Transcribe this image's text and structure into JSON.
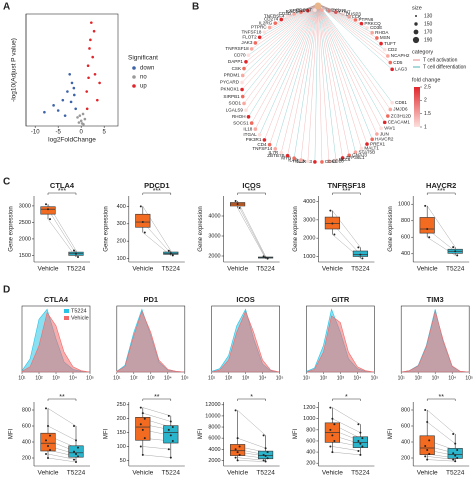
{
  "chart_data": [
    {
      "type": "scatter",
      "panel": "A",
      "xlabel": "log2FoldChange",
      "ylabel": "-log10(Adjust P value)",
      "xlim": [
        -12,
        8
      ],
      "xticks": [
        -10,
        -5,
        0,
        5
      ],
      "ylim": [
        0,
        65
      ],
      "legend_title": "Significant",
      "series": [
        {
          "name": "down",
          "color": "#3d63a8",
          "x": [
            -8,
            -6,
            -4,
            -3,
            -2.5,
            -2,
            -1.5,
            -1.2,
            -3.5,
            -5,
            -2.2,
            -1.6
          ],
          "values": [
            8,
            12,
            15,
            20,
            30,
            25,
            18,
            10,
            6,
            9,
            14,
            22
          ]
        },
        {
          "name": "no",
          "color": "#9a9a9a",
          "x": [
            -0.5,
            0,
            0.5,
            -0.8,
            0.8,
            0.2,
            -0.3,
            0.4
          ],
          "values": [
            2,
            3,
            1,
            5,
            4,
            1.5,
            6,
            7
          ]
        },
        {
          "name": "up",
          "color": "#e0262b",
          "x": [
            1.2,
            1.5,
            2,
            2.5,
            3,
            4,
            2.2,
            1.8,
            3.5,
            1.3,
            2.8,
            1.6
          ],
          "values": [
            20,
            35,
            50,
            40,
            30,
            25,
            60,
            45,
            15,
            10,
            55,
            28
          ]
        }
      ]
    },
    {
      "type": "network",
      "panel": "B",
      "size_title": "size",
      "sizes": [
        130,
        150,
        170,
        190
      ],
      "category_title": "category",
      "categories": [
        "T cell activation",
        "T cell differentiation"
      ],
      "category_colors": [
        "#e68a8a",
        "#4fb0b5"
      ],
      "fold_title": "fold change",
      "fold_ticks": [
        2.5,
        2.0,
        1.5,
        1.0
      ],
      "nodes": [
        "CD81",
        "JMJD6",
        "ZC3H12D",
        "CEACAM1",
        "VAV1",
        "JUN",
        "HAVCR2",
        "PREX1",
        "MALT1",
        "STAT5B",
        "GNAJ3",
        "ZFP36L1",
        "BCL6",
        "CD28",
        "CD83",
        "NLRC3",
        "RELB",
        "IL4R",
        "MYB",
        "ZBTB7B",
        "IL7R",
        "TNFSF14",
        "CD4",
        "PIK3R1",
        "ITGAL",
        "IL18",
        "SOCS1",
        "RHOH",
        "LGALS9",
        "SOD1",
        "SIRPB1",
        "PKNOX1",
        "PYCARD",
        "PRDM1",
        "CSK",
        "DAPP1",
        "CD70",
        "TNFRSF18",
        "JAK3",
        "FLOT2",
        "TNFSF18",
        "PTPRC",
        "IL2RG",
        "CD274",
        "TNFRSF4",
        "CD3D",
        "RAC1",
        "STMN3",
        "EDOST",
        "TREX1",
        "CD276",
        "CD47",
        "DUSP3",
        "LCK",
        "PTPN6",
        "PRKCQ",
        "CD3E",
        "RHOA",
        "MSN",
        "TUFT",
        "CD2",
        "NCAPH2",
        "CD5",
        "LAG3"
      ]
    },
    {
      "type": "box",
      "panel": "C",
      "title": "CTLA4",
      "ylabel": "Gene expression",
      "categories": [
        "Vehicle",
        "T5224"
      ],
      "ylim": [
        1300,
        3300
      ],
      "yticks": [
        1500,
        2000,
        2500,
        3000
      ],
      "significance": "***",
      "series": [
        {
          "name": "Vehicle",
          "color": "#f26b21",
          "values": [
            3050,
            2900,
            2600
          ]
        },
        {
          "name": "T5224",
          "color": "#2bb5cc",
          "values": [
            1650,
            1550,
            1450
          ]
        }
      ]
    },
    {
      "type": "box",
      "panel": "C",
      "title": "PDCD1",
      "ylabel": "Gene expression",
      "categories": [
        "Vehicle",
        "T5224"
      ],
      "ylim": [
        80,
        460
      ],
      "yticks": [
        100,
        200,
        300,
        400
      ],
      "significance": "***",
      "series": [
        {
          "name": "Vehicle",
          "color": "#f26b21",
          "values": [
            400,
            310,
            250
          ]
        },
        {
          "name": "T5224",
          "color": "#2bb5cc",
          "values": [
            145,
            130,
            118
          ]
        }
      ]
    },
    {
      "type": "box",
      "panel": "C",
      "title": "ICOS",
      "ylabel": "Gene expression",
      "categories": [
        "Vehicle",
        "T5224"
      ],
      "ylim": [
        1700,
        5000
      ],
      "yticks": [
        2000,
        3000,
        4000
      ],
      "significance": "***",
      "series": [
        {
          "name": "Vehicle",
          "color": "#f26b21",
          "values": [
            4750,
            4600,
            4400
          ]
        },
        {
          "name": "T5224",
          "color": "#2bb5cc",
          "values": [
            1980,
            1920,
            1870
          ]
        }
      ]
    },
    {
      "type": "box",
      "panel": "C",
      "title": "TNFRSF18",
      "ylabel": "Gene expression",
      "categories": [
        "Vehicle",
        "T5224"
      ],
      "ylim": [
        700,
        4300
      ],
      "yticks": [
        1000,
        2000,
        3000,
        4000
      ],
      "significance": "***",
      "series": [
        {
          "name": "Vehicle",
          "color": "#f26b21",
          "values": [
            3500,
            2800,
            2200
          ]
        },
        {
          "name": "T5224",
          "color": "#2bb5cc",
          "values": [
            1500,
            1100,
            900
          ]
        }
      ]
    },
    {
      "type": "box",
      "panel": "C",
      "title": "HAVCR2",
      "ylabel": "Gene expression",
      "categories": [
        "Vehicle",
        "T5224"
      ],
      "ylim": [
        300,
        1100
      ],
      "yticks": [
        400,
        600,
        800,
        1000
      ],
      "significance": "***",
      "series": [
        {
          "name": "Vehicle",
          "color": "#f26b21",
          "values": [
            980,
            700,
            600
          ]
        },
        {
          "name": "T5224",
          "color": "#2bb5cc",
          "values": [
            480,
            430,
            380
          ]
        }
      ]
    },
    {
      "type": "density",
      "panel": "D",
      "title": "CTLA4",
      "log": true,
      "x": [
        10,
        30,
        100,
        300,
        1000,
        3000,
        10000,
        30000,
        100000
      ],
      "xlim": [
        10,
        100000
      ],
      "xticks": [
        {
          "value": 10,
          "label": "10¹"
        },
        {
          "value": 100,
          "label": "10²"
        },
        {
          "value": 1000,
          "label": "10³"
        },
        {
          "value": 10000,
          "label": "10⁴"
        },
        {
          "value": 100000,
          "label": "10⁵"
        }
      ],
      "ylim": [
        0,
        100
      ],
      "series": [
        {
          "name": "T5224",
          "color": "#29c4e6",
          "values": [
            2,
            20,
            80,
            95,
            50,
            15,
            4,
            1,
            0
          ]
        },
        {
          "name": "Vehicle",
          "color": "#f26b6b",
          "values": [
            1,
            8,
            40,
            90,
            70,
            30,
            8,
            2,
            0
          ]
        }
      ]
    },
    {
      "type": "density",
      "panel": "D",
      "title": "PD1",
      "log": true,
      "x": [
        10,
        30,
        100,
        300,
        1000,
        3000,
        10000,
        30000,
        100000
      ],
      "xlim": [
        10,
        100000
      ],
      "xticks": [
        {
          "value": 10,
          "label": "10¹"
        },
        {
          "value": 100,
          "label": "10²"
        },
        {
          "value": 1000,
          "label": "10³"
        },
        {
          "value": 10000,
          "label": "10⁴"
        },
        {
          "value": 100000,
          "label": "10⁵"
        }
      ],
      "ylim": [
        0,
        100
      ],
      "series": [
        {
          "name": "T5224",
          "color": "#29c4e6",
          "values": [
            1,
            10,
            60,
            95,
            55,
            15,
            3,
            1,
            0
          ]
        },
        {
          "name": "Vehicle",
          "color": "#f26b6b",
          "values": [
            1,
            8,
            55,
            92,
            60,
            18,
            4,
            1,
            0
          ]
        }
      ]
    },
    {
      "type": "density",
      "panel": "D",
      "title": "ICOS",
      "log": true,
      "x": [
        10,
        30,
        100,
        300,
        1000,
        3000,
        10000,
        30000,
        100000
      ],
      "xlim": [
        10,
        100000
      ],
      "xticks": [
        {
          "value": 10,
          "label": "10¹"
        },
        {
          "value": 100,
          "label": "10²"
        },
        {
          "value": 1000,
          "label": "10³"
        },
        {
          "value": 10000,
          "label": "10⁴"
        },
        {
          "value": 100000,
          "label": "10⁵"
        }
      ],
      "ylim": [
        0,
        100
      ],
      "series": [
        {
          "name": "T5224",
          "color": "#29c4e6",
          "values": [
            1,
            5,
            25,
            70,
            95,
            50,
            12,
            2,
            0
          ]
        },
        {
          "name": "Vehicle",
          "color": "#f26b6b",
          "values": [
            0,
            3,
            18,
            60,
            92,
            60,
            18,
            3,
            0
          ]
        }
      ]
    },
    {
      "type": "density",
      "panel": "D",
      "title": "GITR",
      "log": true,
      "x": [
        10,
        30,
        100,
        300,
        1000,
        3000,
        10000,
        30000,
        100000
      ],
      "xlim": [
        10,
        100000
      ],
      "xticks": [
        {
          "value": 10,
          "label": "10¹"
        },
        {
          "value": 100,
          "label": "10²"
        },
        {
          "value": 1000,
          "label": "10³"
        },
        {
          "value": 10000,
          "label": "10⁴"
        },
        {
          "value": 100000,
          "label": "10⁵"
        }
      ],
      "ylim": [
        0,
        100
      ],
      "series": [
        {
          "name": "T5224",
          "color": "#29c4e6",
          "values": [
            1,
            6,
            40,
            95,
            60,
            20,
            5,
            1,
            0
          ]
        },
        {
          "name": "Vehicle",
          "color": "#f26b6b",
          "values": [
            0,
            4,
            30,
            85,
            75,
            30,
            8,
            2,
            0
          ]
        }
      ]
    },
    {
      "type": "density",
      "panel": "D",
      "title": "TIM3",
      "log": true,
      "x": [
        10,
        30,
        100,
        300,
        1000,
        3000,
        10000,
        30000,
        100000
      ],
      "xlim": [
        10,
        100000
      ],
      "xticks": [
        {
          "value": 10,
          "label": "10¹"
        },
        {
          "value": 100,
          "label": "10²"
        },
        {
          "value": 1000,
          "label": "10³"
        },
        {
          "value": 10000,
          "label": "10⁴"
        },
        {
          "value": 100000,
          "label": "10⁵"
        }
      ],
      "ylim": [
        0,
        100
      ],
      "series": [
        {
          "name": "T5224",
          "color": "#29c4e6",
          "values": [
            0,
            2,
            10,
            40,
            95,
            45,
            8,
            1,
            0
          ]
        },
        {
          "name": "Vehicle",
          "color": "#f26b6b",
          "values": [
            0,
            2,
            9,
            38,
            92,
            48,
            9,
            1,
            0
          ]
        }
      ]
    },
    {
      "type": "box",
      "panel": "D",
      "title": "",
      "ylabel": "MFI",
      "categories": [
        "Vehicle",
        "T5224"
      ],
      "ylim": [
        100,
        900
      ],
      "yticks": [
        200,
        400,
        600,
        800
      ],
      "significance": "**",
      "series": [
        {
          "name": "Vehicle",
          "color": "#f26b21",
          "values": [
            820,
            600,
            480,
            420,
            350,
            300,
            250,
            200
          ]
        },
        {
          "name": "T5224",
          "color": "#2bb5cc",
          "values": [
            600,
            420,
            330,
            280,
            250,
            220,
            180,
            150
          ]
        }
      ]
    },
    {
      "type": "box",
      "panel": "D",
      "title": "",
      "ylabel": "MFI",
      "categories": [
        "Vehicle",
        "T5224"
      ],
      "ylim": [
        30,
        260
      ],
      "yticks": [
        50,
        100,
        150,
        200,
        250
      ],
      "significance": "**",
      "series": [
        {
          "name": "Vehicle",
          "color": "#f26b21",
          "values": [
            240,
            220,
            200,
            180,
            160,
            130,
            100,
            70
          ]
        },
        {
          "name": "T5224",
          "color": "#2bb5cc",
          "values": [
            210,
            190,
            170,
            160,
            140,
            120,
            90,
            60
          ]
        }
      ]
    },
    {
      "type": "box",
      "panel": "D",
      "title": "",
      "ylabel": "MFI",
      "categories": [
        "Vehicle",
        "T5224"
      ],
      "ylim": [
        1000,
        12500
      ],
      "yticks": [
        2000,
        4000,
        6000,
        8000,
        10000,
        12000
      ],
      "significance": "*",
      "series": [
        {
          "name": "Vehicle",
          "color": "#f26b21",
          "values": [
            11000,
            6000,
            4500,
            4000,
            3500,
            3000,
            2500,
            2000
          ]
        },
        {
          "name": "T5224",
          "color": "#2bb5cc",
          "values": [
            6500,
            4200,
            3500,
            3000,
            2800,
            2400,
            2000,
            1800
          ]
        }
      ]
    },
    {
      "type": "box",
      "panel": "D",
      "title": "",
      "ylabel": "MFI",
      "categories": [
        "Vehicle",
        "T5224"
      ],
      "ylim": [
        150,
        1300
      ],
      "yticks": [
        200,
        400,
        600,
        800,
        1000,
        1200
      ],
      "significance": "*",
      "series": [
        {
          "name": "Vehicle",
          "color": "#f26b21",
          "values": [
            1200,
            1000,
            900,
            800,
            700,
            600,
            500,
            400
          ]
        },
        {
          "name": "T5224",
          "color": "#2bb5cc",
          "values": [
            900,
            750,
            650,
            600,
            550,
            500,
            420,
            350
          ]
        }
      ]
    },
    {
      "type": "box",
      "panel": "D",
      "title": "",
      "ylabel": "MFI",
      "categories": [
        "Vehicle",
        "T5224"
      ],
      "ylim": [
        100,
        900
      ],
      "yticks": [
        200,
        400,
        600,
        800
      ],
      "significance": "**",
      "series": [
        {
          "name": "Vehicle",
          "color": "#f26b21",
          "values": [
            800,
            650,
            420,
            350,
            300,
            250,
            220,
            180
          ]
        },
        {
          "name": "T5224",
          "color": "#2bb5cc",
          "values": [
            500,
            380,
            300,
            260,
            230,
            200,
            180,
            160
          ]
        }
      ]
    }
  ]
}
